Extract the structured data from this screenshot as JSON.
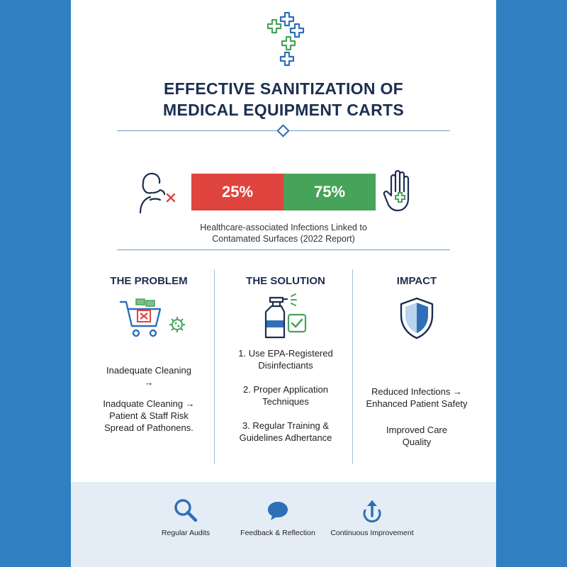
{
  "title": {
    "line1": "EFFECTIVE SANITIZATION OF",
    "line2": "MEDICAL EQUIPMENT CARTS"
  },
  "stat": {
    "left_value": "25%",
    "right_value": "75%",
    "left_fraction": 0.25,
    "right_fraction": 0.75,
    "left_color": "#e0443f",
    "right_color": "#48a35a",
    "caption_line1": "Healthcare-associated Infections Linked to",
    "caption_line2": "Contamated Surfaces (2022 Report)"
  },
  "columns": {
    "problem": {
      "title": "THE PROBLEM",
      "icon": "shopping-cart-x-icon",
      "text1_line1": "Inadequate Cleaning",
      "text1_line2": "→",
      "text2_line1": "Inadquate Cleaning →",
      "text2_line2": "Patient & Staff Risk",
      "text2_line3": "Spread of Pathonens."
    },
    "solution": {
      "title": "THE SOLUTION",
      "icon": "spray-bottle-check-icon",
      "item1_line1": "1. Use EPA-Registered",
      "item1_line2": "Disinfectiants",
      "item2_line1": "2. Proper Application",
      "item2_line2": "Techniques",
      "item3_line1": "3. Regular Training &",
      "item3_line2": "Guidelines Adhertance"
    },
    "impact": {
      "title": "IMPACT",
      "icon": "shield-icon",
      "text1_line1": "Reduced Infections →",
      "text1_line2": "Enhanced Patient Safety",
      "text2_line1": "Improved Care",
      "text2_line2": "Quality"
    }
  },
  "footer": {
    "items": [
      {
        "label": "Regular Audits",
        "icon": "magnifier-icon"
      },
      {
        "label": "Feedback & Reflection",
        "icon": "speech-bubble-icon"
      },
      {
        "label": "Continuous Improvement",
        "icon": "upload-arrow-icon"
      }
    ]
  },
  "colors": {
    "side_blue": "#2f7fc1",
    "navy": "#1c2f4f",
    "accent_blue": "#2f6fb8",
    "accent_green": "#48a35a"
  }
}
